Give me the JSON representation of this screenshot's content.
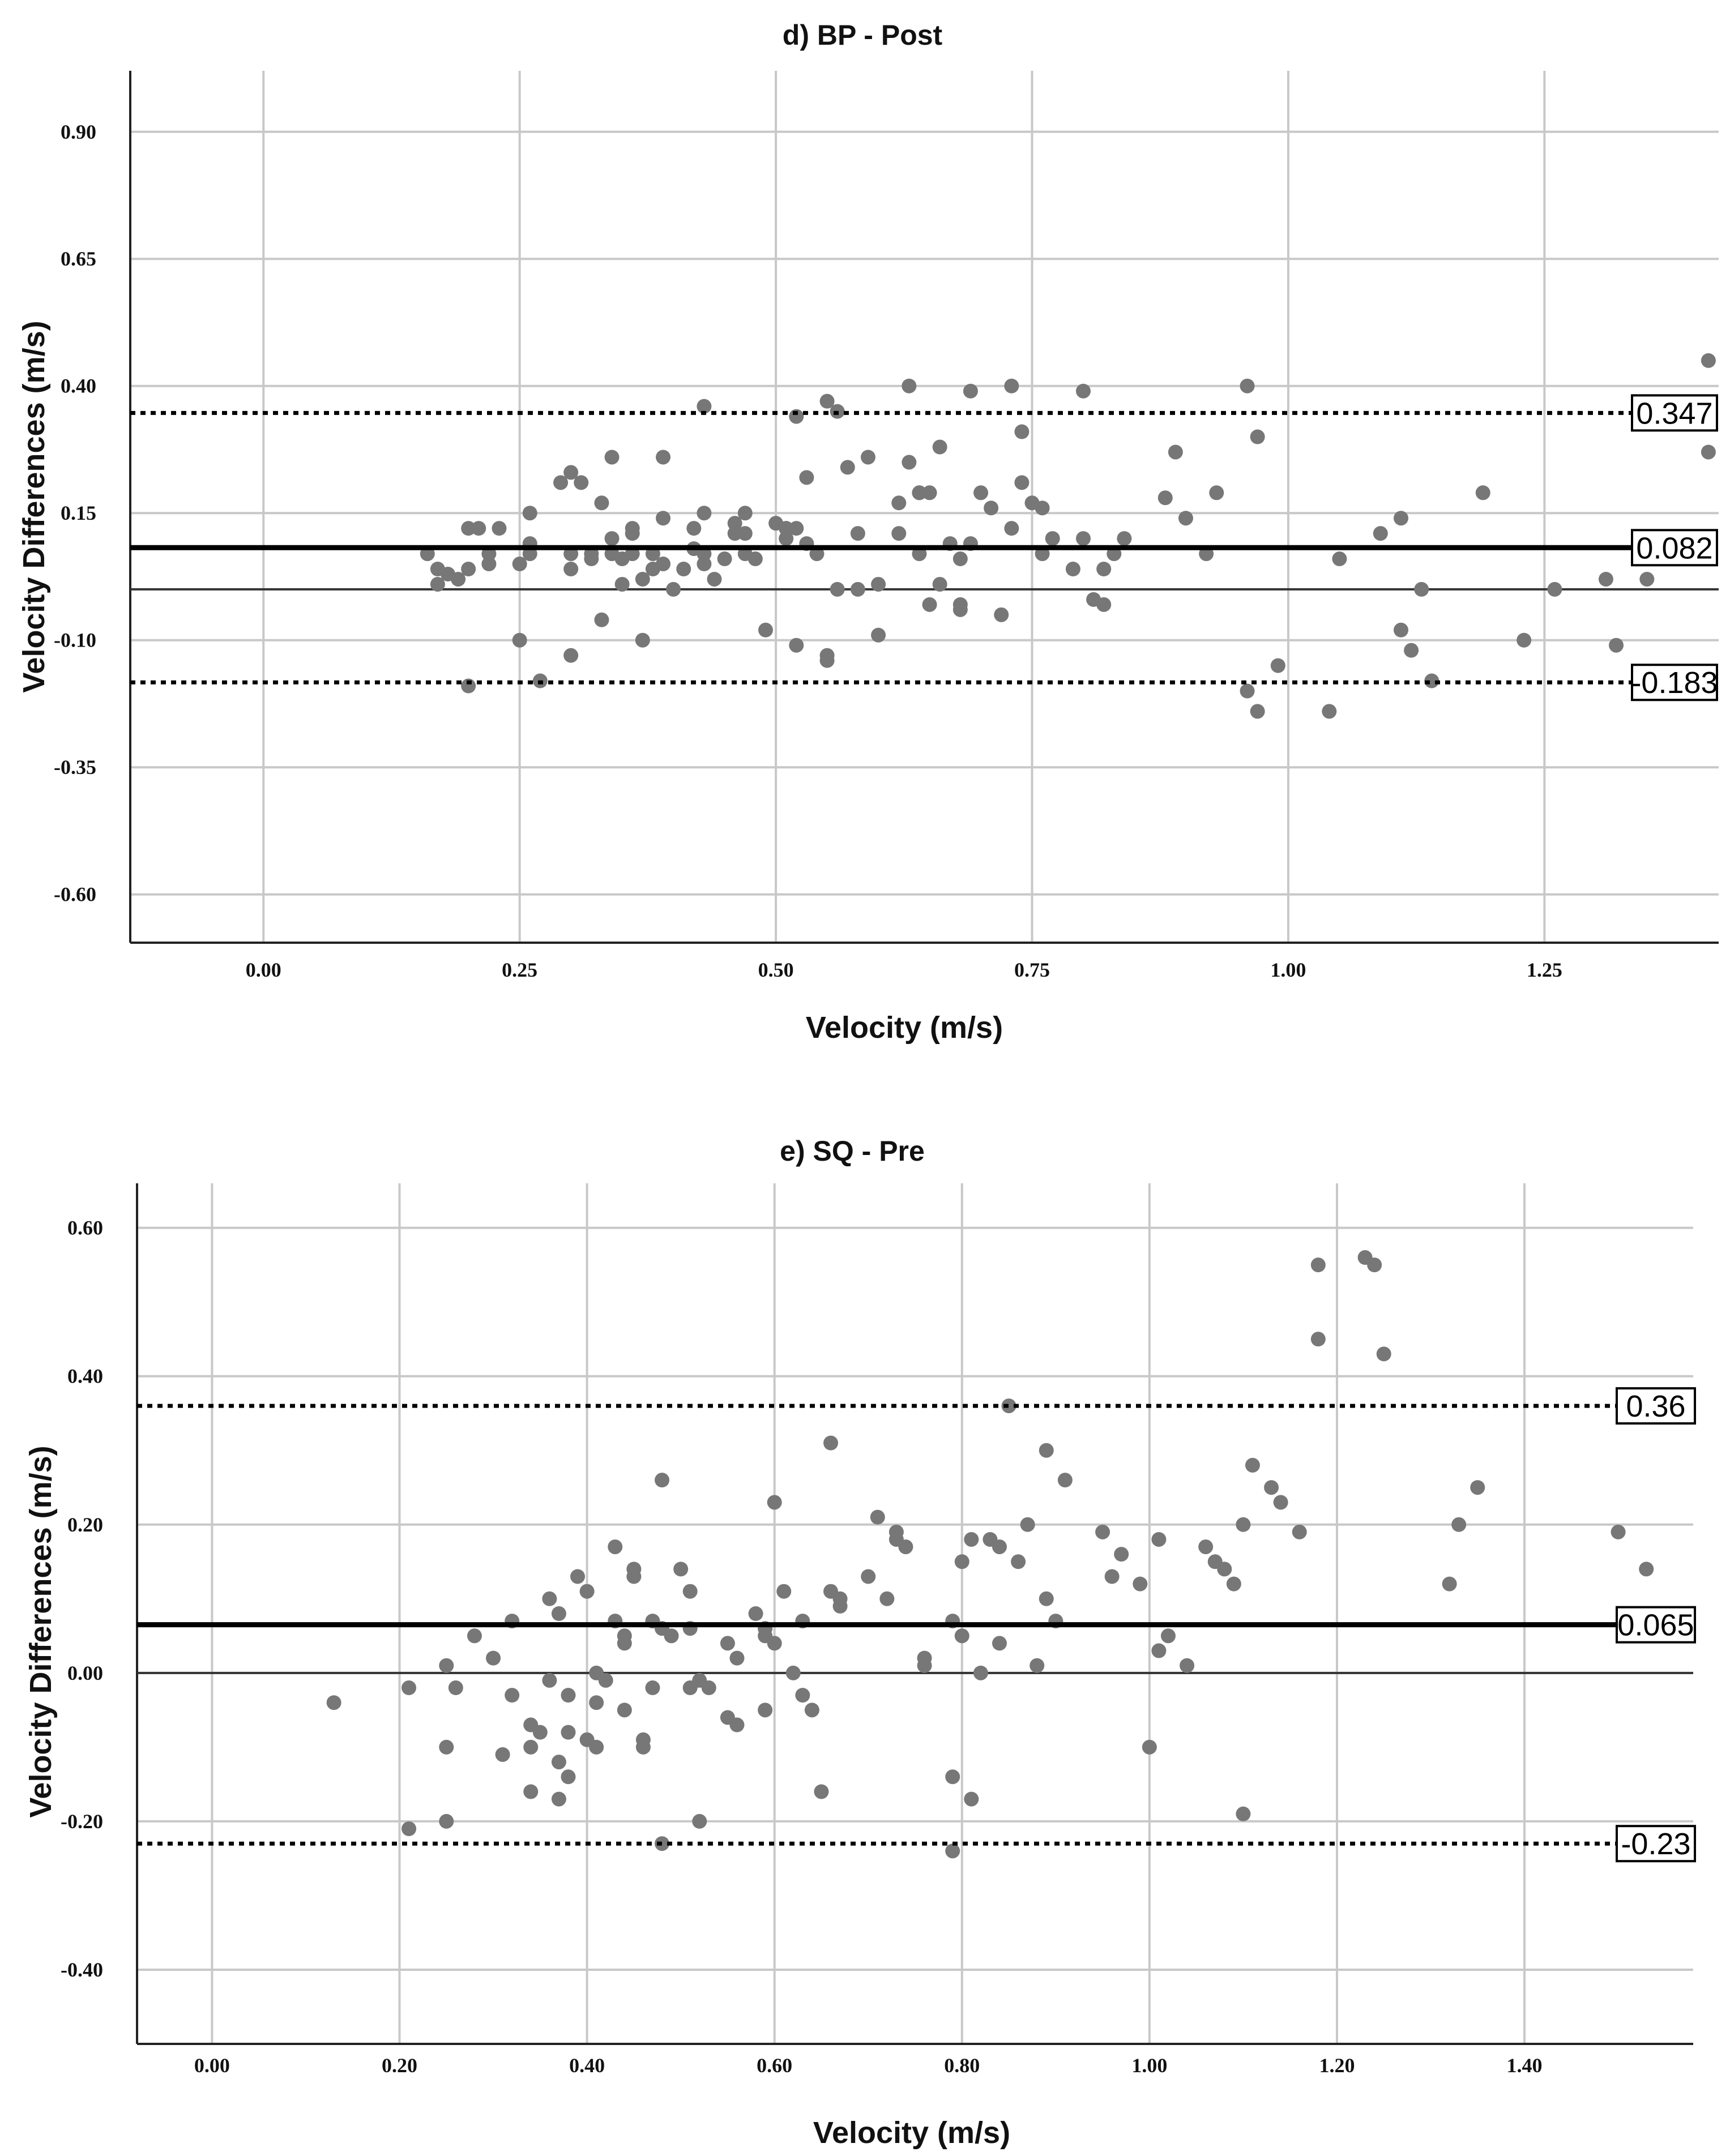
{
  "chart_data": [
    {
      "type": "scatter",
      "title": "d) BP - Post",
      "xlabel": "Velocity (m/s)",
      "ylabel": "Velocity Differences (m/s)",
      "xlim": [
        -0.13,
        1.42
      ],
      "ylim": [
        -0.695,
        1.02
      ],
      "x_ticks": [
        0.0,
        0.25,
        0.5,
        0.75,
        1.0,
        1.25
      ],
      "x_tick_labels": [
        "0.00",
        "0.25",
        "0.50",
        "0.75",
        "1.00",
        "1.25"
      ],
      "y_ticks": [
        -0.6,
        -0.35,
        -0.1,
        0.15,
        0.4,
        0.65,
        0.9
      ],
      "y_tick_labels": [
        "-0.60",
        "-0.35",
        "-0.10",
        "0.15",
        "0.40",
        "0.65",
        "0.90"
      ],
      "grid": true,
      "zero_line": 0.0,
      "mean_line": {
        "value": 0.082,
        "label": "0.082"
      },
      "limits_of_agreement": [
        {
          "value": 0.347,
          "label": "0.347"
        },
        {
          "value": -0.183,
          "label": "-0.183"
        }
      ],
      "points": [
        [
          0.16,
          0.07
        ],
        [
          0.17,
          0.01
        ],
        [
          0.17,
          0.04
        ],
        [
          0.18,
          0.03
        ],
        [
          0.19,
          0.02
        ],
        [
          0.2,
          0.04
        ],
        [
          0.2,
          -0.19
        ],
        [
          0.2,
          0.12
        ],
        [
          0.21,
          0.12
        ],
        [
          0.22,
          0.05
        ],
        [
          0.22,
          0.07
        ],
        [
          0.23,
          0.12
        ],
        [
          0.25,
          0.05
        ],
        [
          0.25,
          -0.1
        ],
        [
          0.26,
          0.07
        ],
        [
          0.26,
          0.15
        ],
        [
          0.26,
          0.09
        ],
        [
          0.27,
          -0.18
        ],
        [
          0.29,
          0.21
        ],
        [
          0.3,
          0.23
        ],
        [
          0.3,
          0.07
        ],
        [
          0.3,
          0.04
        ],
        [
          0.3,
          -0.13
        ],
        [
          0.31,
          0.21
        ],
        [
          0.32,
          0.06
        ],
        [
          0.32,
          0.07
        ],
        [
          0.33,
          0.17
        ],
        [
          0.33,
          -0.06
        ],
        [
          0.34,
          0.26
        ],
        [
          0.34,
          0.07
        ],
        [
          0.34,
          0.1
        ],
        [
          0.35,
          0.06
        ],
        [
          0.35,
          0.01
        ],
        [
          0.36,
          0.12
        ],
        [
          0.36,
          0.11
        ],
        [
          0.36,
          0.07
        ],
        [
          0.37,
          0.02
        ],
        [
          0.37,
          -0.1
        ],
        [
          0.38,
          0.04
        ],
        [
          0.38,
          0.07
        ],
        [
          0.39,
          0.05
        ],
        [
          0.39,
          0.26
        ],
        [
          0.39,
          0.14
        ],
        [
          0.4,
          0.0
        ],
        [
          0.41,
          0.04
        ],
        [
          0.42,
          0.12
        ],
        [
          0.42,
          0.08
        ],
        [
          0.43,
          0.36
        ],
        [
          0.43,
          0.15
        ],
        [
          0.43,
          0.05
        ],
        [
          0.43,
          0.07
        ],
        [
          0.44,
          0.02
        ],
        [
          0.45,
          0.06
        ],
        [
          0.46,
          0.11
        ],
        [
          0.46,
          0.13
        ],
        [
          0.47,
          0.11
        ],
        [
          0.47,
          0.07
        ],
        [
          0.47,
          0.15
        ],
        [
          0.48,
          0.06
        ],
        [
          0.49,
          -0.08
        ],
        [
          0.5,
          0.13
        ],
        [
          0.51,
          0.12
        ],
        [
          0.51,
          0.1
        ],
        [
          0.51,
          0.12
        ],
        [
          0.52,
          0.12
        ],
        [
          0.52,
          -0.11
        ],
        [
          0.52,
          0.34
        ],
        [
          0.53,
          0.22
        ],
        [
          0.53,
          0.09
        ],
        [
          0.54,
          0.07
        ],
        [
          0.55,
          -0.13
        ],
        [
          0.55,
          -0.14
        ],
        [
          0.55,
          0.37
        ],
        [
          0.56,
          0.35
        ],
        [
          0.56,
          0.0
        ],
        [
          0.57,
          0.24
        ],
        [
          0.58,
          0.11
        ],
        [
          0.58,
          0.0
        ],
        [
          0.59,
          0.26
        ],
        [
          0.6,
          -0.09
        ],
        [
          0.6,
          0.01
        ],
        [
          0.62,
          0.17
        ],
        [
          0.62,
          0.11
        ],
        [
          0.63,
          0.4
        ],
        [
          0.63,
          0.25
        ],
        [
          0.64,
          0.19
        ],
        [
          0.64,
          0.19
        ],
        [
          0.64,
          0.07
        ],
        [
          0.65,
          -0.03
        ],
        [
          0.65,
          0.19
        ],
        [
          0.66,
          0.28
        ],
        [
          0.66,
          0.01
        ],
        [
          0.67,
          0.09
        ],
        [
          0.68,
          -0.04
        ],
        [
          0.68,
          0.06
        ],
        [
          0.68,
          -0.03
        ],
        [
          0.69,
          0.09
        ],
        [
          0.69,
          0.39
        ],
        [
          0.7,
          0.19
        ],
        [
          0.71,
          0.16
        ],
        [
          0.72,
          -0.05
        ],
        [
          0.73,
          0.12
        ],
        [
          0.73,
          0.4
        ],
        [
          0.74,
          0.31
        ],
        [
          0.74,
          0.21
        ],
        [
          0.75,
          0.17
        ],
        [
          0.76,
          0.16
        ],
        [
          0.76,
          0.07
        ],
        [
          0.77,
          0.1
        ],
        [
          0.79,
          0.04
        ],
        [
          0.8,
          0.1
        ],
        [
          0.8,
          0.39
        ],
        [
          0.81,
          -0.02
        ],
        [
          0.82,
          -0.03
        ],
        [
          0.82,
          0.04
        ],
        [
          0.83,
          0.07
        ],
        [
          0.84,
          0.1
        ],
        [
          0.88,
          0.18
        ],
        [
          0.89,
          0.27
        ],
        [
          0.9,
          0.14
        ],
        [
          0.92,
          0.07
        ],
        [
          0.93,
          0.19
        ],
        [
          0.96,
          -0.2
        ],
        [
          0.96,
          0.4
        ],
        [
          0.97,
          -0.24
        ],
        [
          0.97,
          0.3
        ],
        [
          0.99,
          -0.15
        ],
        [
          1.04,
          -0.24
        ],
        [
          1.05,
          0.06
        ],
        [
          1.09,
          0.11
        ],
        [
          1.11,
          0.14
        ],
        [
          1.11,
          -0.08
        ],
        [
          1.12,
          -0.12
        ],
        [
          1.13,
          0.0
        ],
        [
          1.14,
          -0.18
        ],
        [
          1.19,
          0.19
        ],
        [
          1.23,
          -0.1
        ],
        [
          1.26,
          0.0
        ],
        [
          1.31,
          0.02
        ],
        [
          1.32,
          -0.11
        ],
        [
          1.35,
          0.02
        ],
        [
          1.41,
          0.45
        ],
        [
          1.41,
          0.27
        ]
      ]
    },
    {
      "type": "scatter",
      "title": "e) SQ - Pre",
      "xlabel": "Velocity (m/s)",
      "ylabel": "Velocity Differences (m/s)",
      "xlim": [
        -0.08,
        1.58
      ],
      "ylim": [
        -0.5,
        0.66
      ],
      "x_ticks": [
        0.0,
        0.2,
        0.4,
        0.6,
        0.8,
        1.0,
        1.2,
        1.4
      ],
      "x_tick_labels": [
        "0.00",
        "0.20",
        "0.40",
        "0.60",
        "0.80",
        "1.00",
        "1.20",
        "1.40"
      ],
      "y_ticks": [
        -0.4,
        -0.2,
        0.0,
        0.2,
        0.4,
        0.6
      ],
      "y_tick_labels": [
        "-0.40",
        "-0.20",
        "0.00",
        "0.20",
        "0.40",
        "0.60"
      ],
      "grid": true,
      "zero_line": 0.0,
      "mean_line": {
        "value": 0.065,
        "label": "0.065"
      },
      "limits_of_agreement": [
        {
          "value": 0.36,
          "label": "0.36"
        },
        {
          "value": -0.23,
          "label": "-0.23"
        }
      ],
      "points": [
        [
          0.13,
          -0.04
        ],
        [
          0.21,
          -0.21
        ],
        [
          0.21,
          -0.02
        ],
        [
          0.25,
          0.01
        ],
        [
          0.25,
          -0.1
        ],
        [
          0.25,
          -0.2
        ],
        [
          0.26,
          -0.02
        ],
        [
          0.28,
          0.05
        ],
        [
          0.3,
          0.02
        ],
        [
          0.31,
          -0.11
        ],
        [
          0.32,
          0.07
        ],
        [
          0.32,
          -0.03
        ],
        [
          0.34,
          -0.1
        ],
        [
          0.34,
          -0.16
        ],
        [
          0.34,
          -0.07
        ],
        [
          0.35,
          -0.08
        ],
        [
          0.36,
          0.1
        ],
        [
          0.36,
          -0.01
        ],
        [
          0.37,
          0.08
        ],
        [
          0.37,
          -0.12
        ],
        [
          0.37,
          -0.17
        ],
        [
          0.38,
          -0.03
        ],
        [
          0.38,
          -0.08
        ],
        [
          0.38,
          -0.14
        ],
        [
          0.39,
          0.13
        ],
        [
          0.4,
          0.11
        ],
        [
          0.4,
          -0.09
        ],
        [
          0.41,
          0.0
        ],
        [
          0.41,
          -0.04
        ],
        [
          0.41,
          -0.1
        ],
        [
          0.42,
          -0.01
        ],
        [
          0.43,
          0.17
        ],
        [
          0.43,
          0.07
        ],
        [
          0.44,
          0.05
        ],
        [
          0.44,
          -0.05
        ],
        [
          0.44,
          0.04
        ],
        [
          0.45,
          0.14
        ],
        [
          0.45,
          0.13
        ],
        [
          0.46,
          -0.09
        ],
        [
          0.46,
          -0.1
        ],
        [
          0.47,
          -0.02
        ],
        [
          0.47,
          0.07
        ],
        [
          0.48,
          0.06
        ],
        [
          0.48,
          -0.23
        ],
        [
          0.48,
          0.26
        ],
        [
          0.49,
          0.05
        ],
        [
          0.5,
          0.14
        ],
        [
          0.51,
          -0.02
        ],
        [
          0.51,
          0.11
        ],
        [
          0.51,
          0.06
        ],
        [
          0.52,
          -0.2
        ],
        [
          0.52,
          -0.01
        ],
        [
          0.53,
          -0.02
        ],
        [
          0.55,
          0.04
        ],
        [
          0.55,
          -0.06
        ],
        [
          0.56,
          -0.07
        ],
        [
          0.56,
          0.02
        ],
        [
          0.58,
          0.08
        ],
        [
          0.59,
          0.06
        ],
        [
          0.59,
          0.05
        ],
        [
          0.59,
          -0.05
        ],
        [
          0.6,
          0.04
        ],
        [
          0.6,
          0.23
        ],
        [
          0.61,
          0.11
        ],
        [
          0.62,
          0.0
        ],
        [
          0.63,
          0.07
        ],
        [
          0.63,
          -0.03
        ],
        [
          0.64,
          -0.05
        ],
        [
          0.65,
          -0.16
        ],
        [
          0.66,
          0.31
        ],
        [
          0.66,
          0.11
        ],
        [
          0.67,
          0.1
        ],
        [
          0.67,
          0.09
        ],
        [
          0.7,
          0.13
        ],
        [
          0.71,
          0.21
        ],
        [
          0.72,
          0.1
        ],
        [
          0.73,
          0.19
        ],
        [
          0.73,
          0.18
        ],
        [
          0.74,
          0.17
        ],
        [
          0.76,
          0.02
        ],
        [
          0.76,
          0.01
        ],
        [
          0.79,
          0.07
        ],
        [
          0.79,
          -0.14
        ],
        [
          0.79,
          -0.24
        ],
        [
          0.8,
          0.05
        ],
        [
          0.8,
          0.15
        ],
        [
          0.81,
          -0.17
        ],
        [
          0.81,
          0.18
        ],
        [
          0.82,
          0.0
        ],
        [
          0.83,
          0.18
        ],
        [
          0.84,
          0.04
        ],
        [
          0.84,
          0.17
        ],
        [
          0.85,
          0.36
        ],
        [
          0.86,
          0.15
        ],
        [
          0.87,
          0.2
        ],
        [
          0.88,
          0.01
        ],
        [
          0.89,
          0.3
        ],
        [
          0.89,
          0.1
        ],
        [
          0.9,
          0.07
        ],
        [
          0.91,
          0.26
        ],
        [
          0.95,
          0.19
        ],
        [
          0.96,
          0.13
        ],
        [
          0.97,
          0.16
        ],
        [
          0.99,
          0.12
        ],
        [
          1.0,
          -0.1
        ],
        [
          1.01,
          0.18
        ],
        [
          1.01,
          0.03
        ],
        [
          1.02,
          0.05
        ],
        [
          1.04,
          0.01
        ],
        [
          1.06,
          0.17
        ],
        [
          1.07,
          0.15
        ],
        [
          1.08,
          0.14
        ],
        [
          1.09,
          0.12
        ],
        [
          1.1,
          0.2
        ],
        [
          1.1,
          -0.19
        ],
        [
          1.11,
          0.28
        ],
        [
          1.13,
          0.25
        ],
        [
          1.14,
          0.23
        ],
        [
          1.16,
          0.19
        ],
        [
          1.18,
          0.55
        ],
        [
          1.18,
          0.45
        ],
        [
          1.23,
          0.56
        ],
        [
          1.24,
          0.55
        ],
        [
          1.25,
          0.43
        ],
        [
          1.32,
          0.12
        ],
        [
          1.33,
          0.2
        ],
        [
          1.35,
          0.25
        ],
        [
          1.5,
          0.19
        ],
        [
          1.53,
          0.14
        ]
      ]
    }
  ]
}
